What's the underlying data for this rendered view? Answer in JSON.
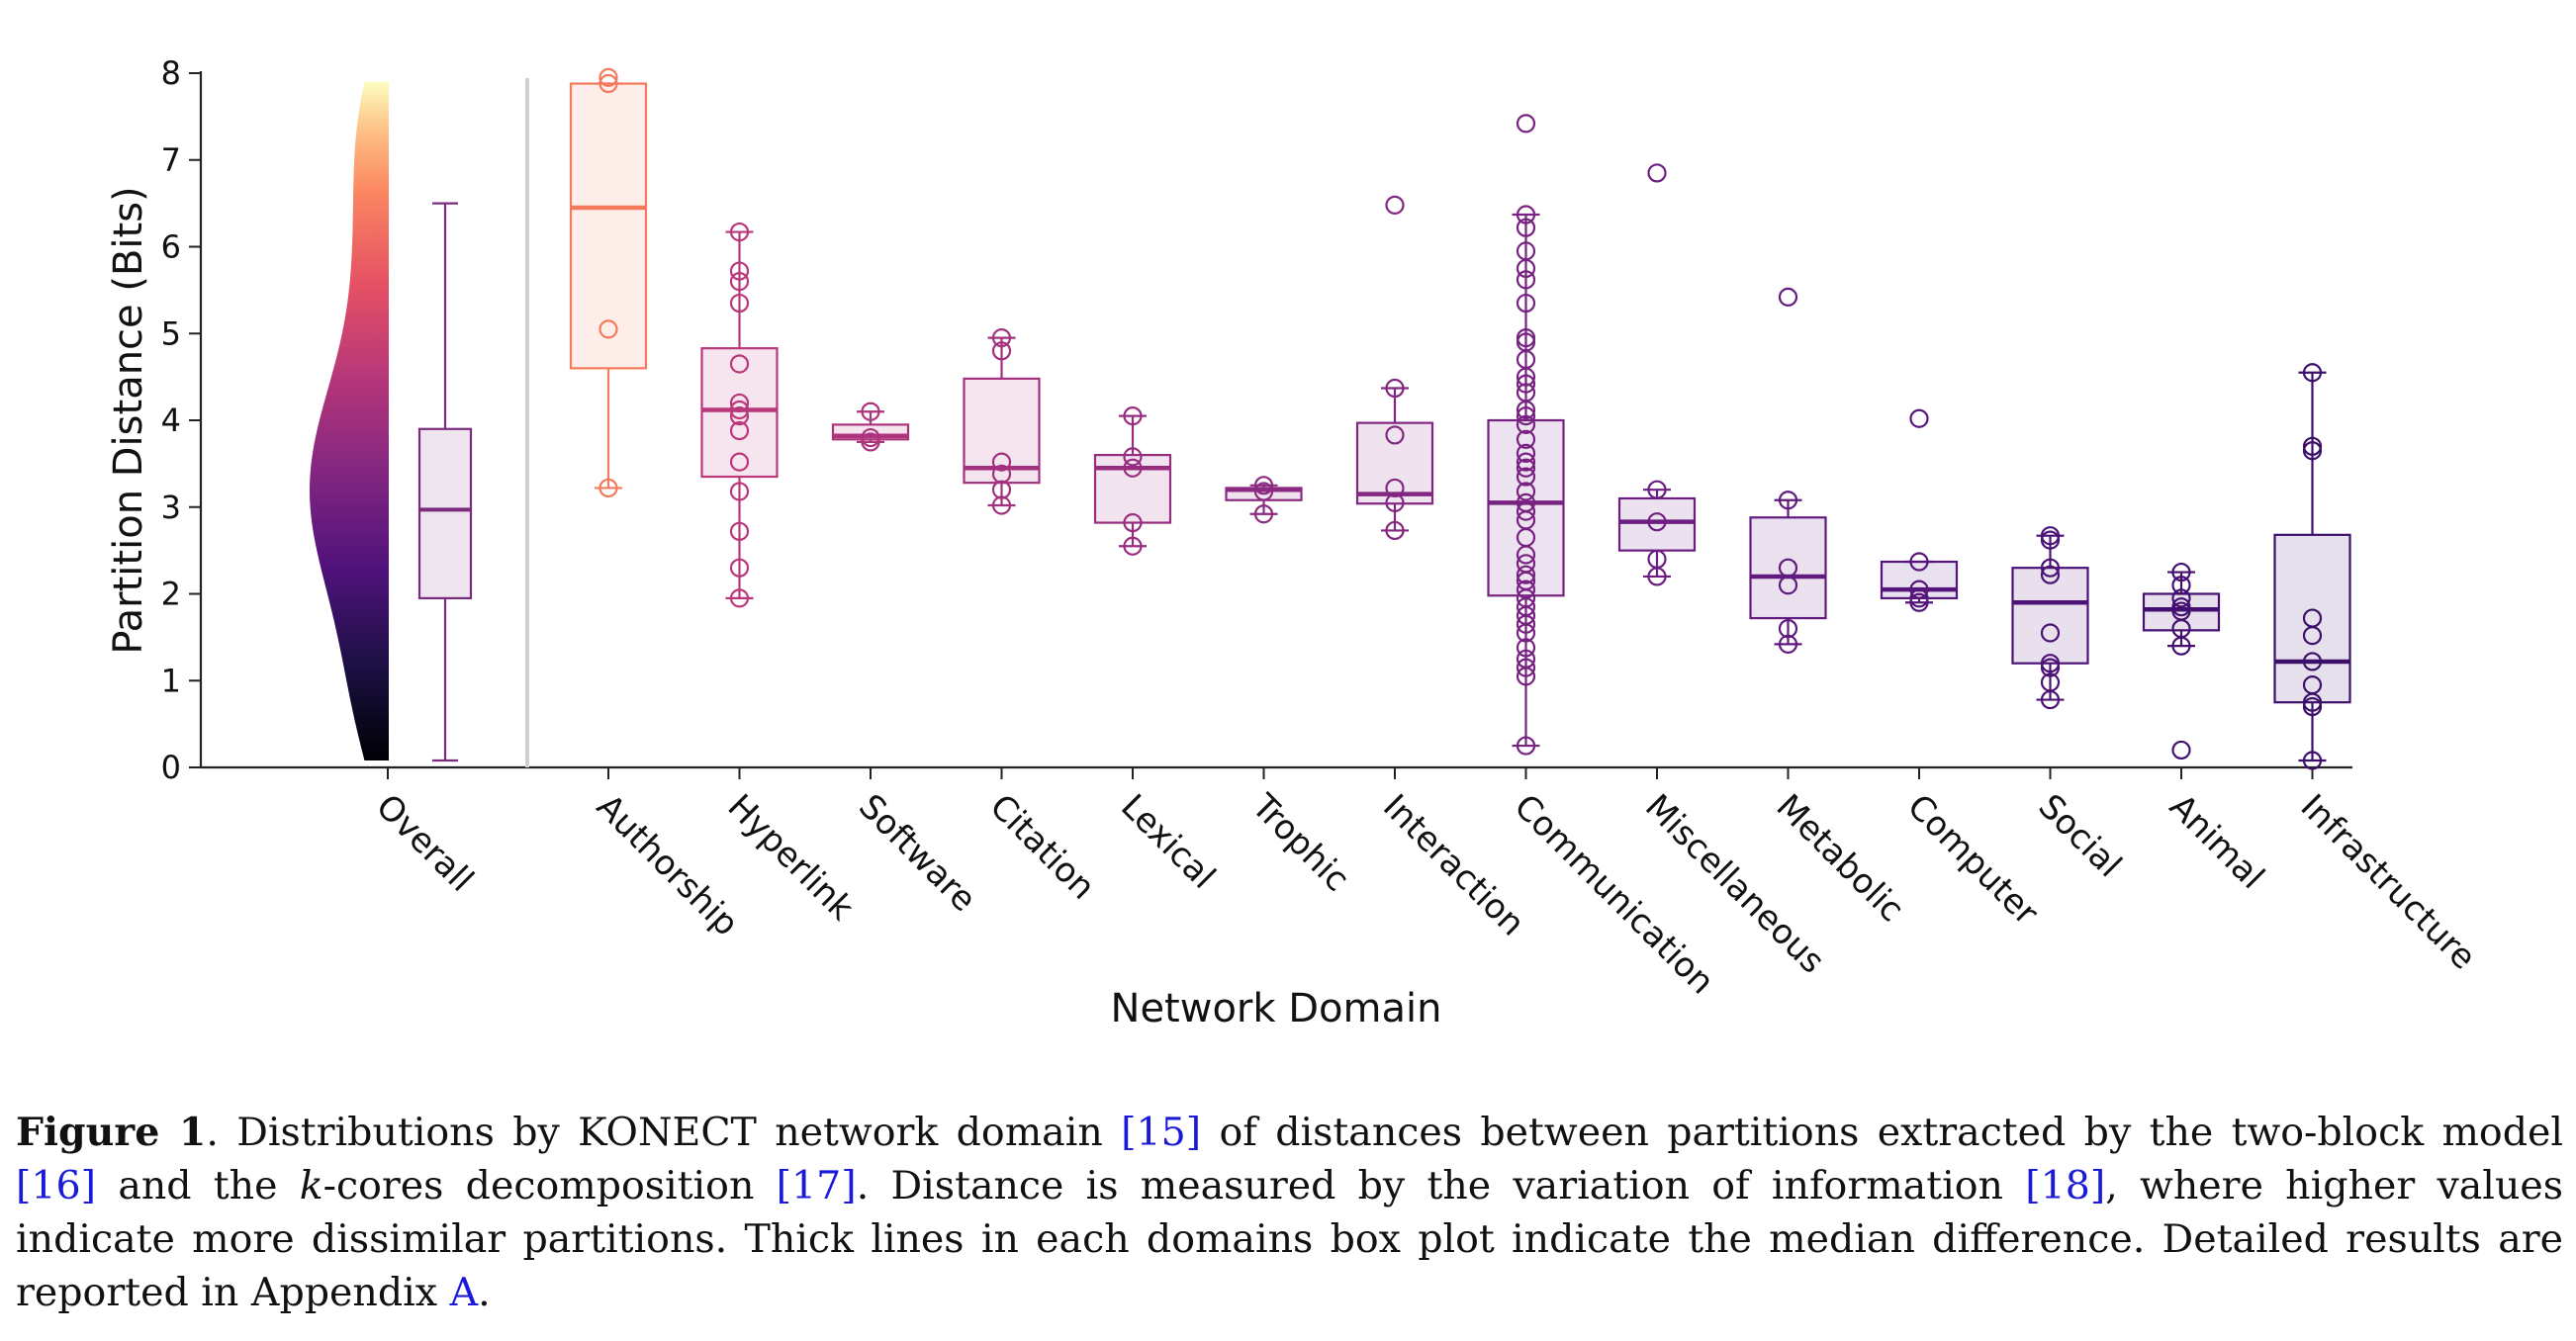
{
  "chart_data": {
    "type": "box",
    "ylabel": "Partition Distance (Bits)",
    "xlabel": "Network Domain",
    "ylim": [
      0,
      8
    ],
    "yticks": [
      0,
      1,
      2,
      3,
      4,
      5,
      6,
      7,
      8
    ],
    "grid": false,
    "overall": {
      "label": "Overall",
      "density_sample": [
        0.08,
        0.6,
        1.0,
        1.4,
        1.8,
        2.1,
        2.4,
        2.6,
        2.8,
        3.0,
        3.2,
        3.4,
        3.6,
        3.8,
        4.0,
        4.3,
        4.6,
        5.0,
        5.5,
        6.0,
        6.5,
        7.0,
        7.5,
        7.9
      ],
      "box": {
        "whisker_low": 0.08,
        "q1": 1.95,
        "median": 2.97,
        "q3": 3.9,
        "whisker_high": 6.5
      }
    },
    "domains": [
      {
        "label": "Authorship",
        "color": "#f47a5d",
        "whisker_low": 3.22,
        "q1": 4.6,
        "median": 6.45,
        "q3": 7.88,
        "whisker_high": 7.88,
        "points": [
          7.95,
          7.88,
          5.05,
          3.22
        ]
      },
      {
        "label": "Hyperlink",
        "color": "#b9377a",
        "whisker_low": 1.95,
        "q1": 3.35,
        "median": 4.12,
        "q3": 4.83,
        "whisker_high": 6.17,
        "points": [
          6.17,
          5.72,
          5.6,
          5.35,
          4.65,
          4.2,
          4.12,
          4.05,
          3.88,
          3.52,
          3.18,
          2.72,
          2.3,
          1.95
        ]
      },
      {
        "label": "Software",
        "color": "#ad347c",
        "whisker_low": 3.75,
        "q1": 3.78,
        "median": 3.82,
        "q3": 3.95,
        "whisker_high": 4.1,
        "points": [
          4.1,
          3.8,
          3.75
        ]
      },
      {
        "label": "Citation",
        "color": "#a3307e",
        "whisker_low": 3.02,
        "q1": 3.28,
        "median": 3.45,
        "q3": 4.48,
        "whisker_high": 4.95,
        "points": [
          4.95,
          4.8,
          3.52,
          3.38,
          3.2,
          3.02
        ]
      },
      {
        "label": "Lexical",
        "color": "#982d80",
        "whisker_low": 2.55,
        "q1": 2.82,
        "median": 3.45,
        "q3": 3.6,
        "whisker_high": 4.05,
        "points": [
          4.05,
          3.58,
          3.45,
          2.82,
          2.55
        ]
      },
      {
        "label": "Trophic",
        "color": "#8c2981",
        "whisker_low": 2.92,
        "q1": 3.08,
        "median": 3.2,
        "q3": 3.22,
        "whisker_high": 3.25,
        "points": [
          3.25,
          3.18,
          2.92
        ]
      },
      {
        "label": "Interaction",
        "color": "#822681",
        "whisker_low": 2.73,
        "q1": 3.04,
        "median": 3.15,
        "q3": 3.97,
        "whisker_high": 4.37,
        "points": [
          6.48,
          4.37,
          3.83,
          3.22,
          3.05,
          2.73
        ]
      },
      {
        "label": "Communication",
        "color": "#772181",
        "whisker_low": 0.25,
        "q1": 1.98,
        "median": 3.05,
        "q3": 4.0,
        "whisker_high": 6.37,
        "points": [
          7.42,
          6.37,
          6.22,
          5.95,
          5.75,
          5.62,
          5.35,
          4.95,
          4.9,
          4.7,
          4.5,
          4.42,
          4.32,
          4.12,
          4.05,
          3.95,
          3.78,
          3.62,
          3.52,
          3.45,
          3.35,
          3.18,
          3.05,
          2.95,
          2.85,
          2.65,
          2.45,
          2.35,
          2.22,
          2.15,
          2.05,
          1.95,
          1.85,
          1.75,
          1.65,
          1.55,
          1.38,
          1.25,
          1.15,
          1.05,
          0.25
        ]
      },
      {
        "label": "Miscellaneous",
        "color": "#6c1d81",
        "whisker_low": 2.2,
        "q1": 2.5,
        "median": 2.83,
        "q3": 3.1,
        "whisker_high": 3.2,
        "points": [
          6.85,
          3.2,
          2.83,
          2.4,
          2.2
        ]
      },
      {
        "label": "Metabolic",
        "color": "#611a7f",
        "whisker_low": 1.42,
        "q1": 1.72,
        "median": 2.2,
        "q3": 2.88,
        "whisker_high": 3.08,
        "points": [
          5.42,
          3.08,
          2.3,
          2.1,
          1.6,
          1.42
        ]
      },
      {
        "label": "Computer",
        "color": "#56157c",
        "whisker_low": 1.9,
        "q1": 1.95,
        "median": 2.05,
        "q3": 2.37,
        "whisker_high": 2.37,
        "points": [
          4.02,
          2.37,
          2.05,
          1.95,
          1.9
        ]
      },
      {
        "label": "Social",
        "color": "#4c1277",
        "whisker_low": 0.78,
        "q1": 1.2,
        "median": 1.9,
        "q3": 2.3,
        "whisker_high": 2.67,
        "points": [
          2.67,
          2.62,
          2.3,
          2.22,
          1.55,
          1.2,
          1.15,
          0.98,
          0.78
        ]
      },
      {
        "label": "Animal",
        "color": "#430f70",
        "whisker_low": 1.4,
        "q1": 1.58,
        "median": 1.82,
        "q3": 2.0,
        "whisker_high": 2.25,
        "points": [
          2.25,
          2.1,
          1.95,
          1.85,
          1.8,
          1.6,
          1.4,
          0.2
        ]
      },
      {
        "label": "Infrastructure",
        "color": "#3b0f6a",
        "whisker_low": 0.08,
        "q1": 0.75,
        "median": 1.22,
        "q3": 2.68,
        "whisker_high": 4.55,
        "points": [
          4.55,
          3.7,
          3.65,
          1.72,
          1.52,
          1.22,
          0.95,
          0.75,
          0.7,
          0.08
        ]
      }
    ]
  },
  "caption": {
    "figure_label": "Figure 1",
    "text_1": ". Distributions by KONECT network domain ",
    "ref_15": "[15]",
    "text_2": " of distances between partitions extracted by the two-block model ",
    "ref_16": "[16]",
    "text_3": " and the ",
    "k_italic": "k",
    "text_4": "-cores decomposition ",
    "ref_17": "[17]",
    "text_5": ". Distance is measured by the variation of information ",
    "ref_18": "[18]",
    "text_6": ", where higher values indicate more dissimilar partitions. Thick lines in each domains box plot indicate the median difference. Detailed results are reported in Appendix ",
    "ref_A": "A",
    "text_7": "."
  }
}
